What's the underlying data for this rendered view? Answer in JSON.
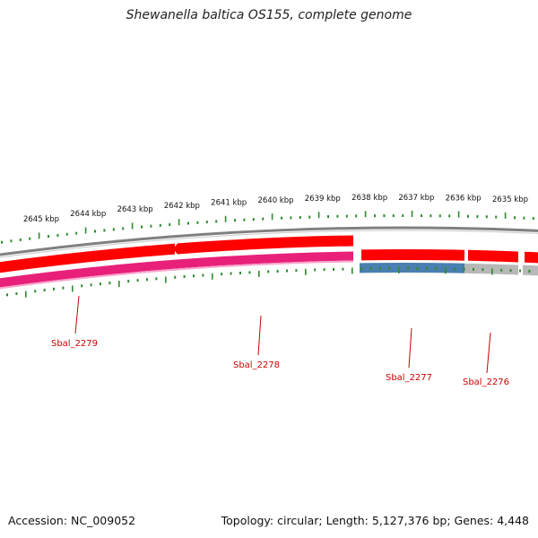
{
  "title": "Shewanella baltica OS155, complete genome",
  "footer": {
    "accession": "Accession: NC_009052",
    "topology": "Topology: circular; Length: 5,127,376 bp; Genes: 4,448"
  },
  "scale": {
    "labels": [
      "2645 kbp",
      "2644 kbp",
      "2643 kbp",
      "2642 kbp",
      "2641 kbp",
      "2640 kbp",
      "2639 kbp",
      "2638 kbp",
      "2637 kbp",
      "2636 kbp",
      "2635 kbp"
    ],
    "color": "#2e8b2e"
  },
  "genes": [
    {
      "label": "Sbal_2279",
      "color": "#ff0000"
    },
    {
      "label": "Sbal_2278",
      "color": "#ff0000"
    },
    {
      "label": "Sbal_2277",
      "color": "#ff0000"
    },
    {
      "label": "Sbal_2276",
      "color": "#ff0000"
    }
  ],
  "colors": {
    "backbone": "#808080",
    "cds_forward": "#ff0000",
    "pink_track": "#e8207a",
    "blue_track": "#4a7fb0",
    "grey_track": "#b8b8b8",
    "gene_label": "#cc0000"
  }
}
